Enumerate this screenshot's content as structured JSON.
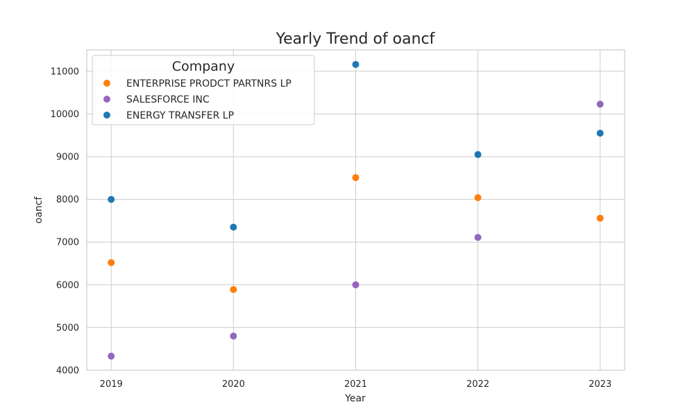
{
  "chart_data": {
    "type": "scatter",
    "title": "Yearly Trend of oancf",
    "xlabel": "Year",
    "ylabel": "oancf",
    "x": [
      2019,
      2020,
      2021,
      2022,
      2023
    ],
    "xlim": [
      2018.8,
      2023.2
    ],
    "ylim": [
      4000,
      11500
    ],
    "yticks": [
      4000,
      5000,
      6000,
      7000,
      8000,
      9000,
      10000,
      11000
    ],
    "grid": true,
    "legend": {
      "title": "Company",
      "placement": "top-left"
    },
    "series": [
      {
        "name": "ENTERPRISE PRODCT PARTNRS LP",
        "color": "#ff7f0e",
        "values": [
          6520,
          5890,
          8510,
          8040,
          7560
        ]
      },
      {
        "name": "SALESFORCE INC",
        "color": "#9467bd",
        "values": [
          4330,
          4800,
          6000,
          7110,
          10230
        ]
      },
      {
        "name": "ENERGY TRANSFER LP",
        "color": "#1f77b4",
        "values": [
          8000,
          7350,
          11160,
          9050,
          9550
        ]
      }
    ]
  }
}
